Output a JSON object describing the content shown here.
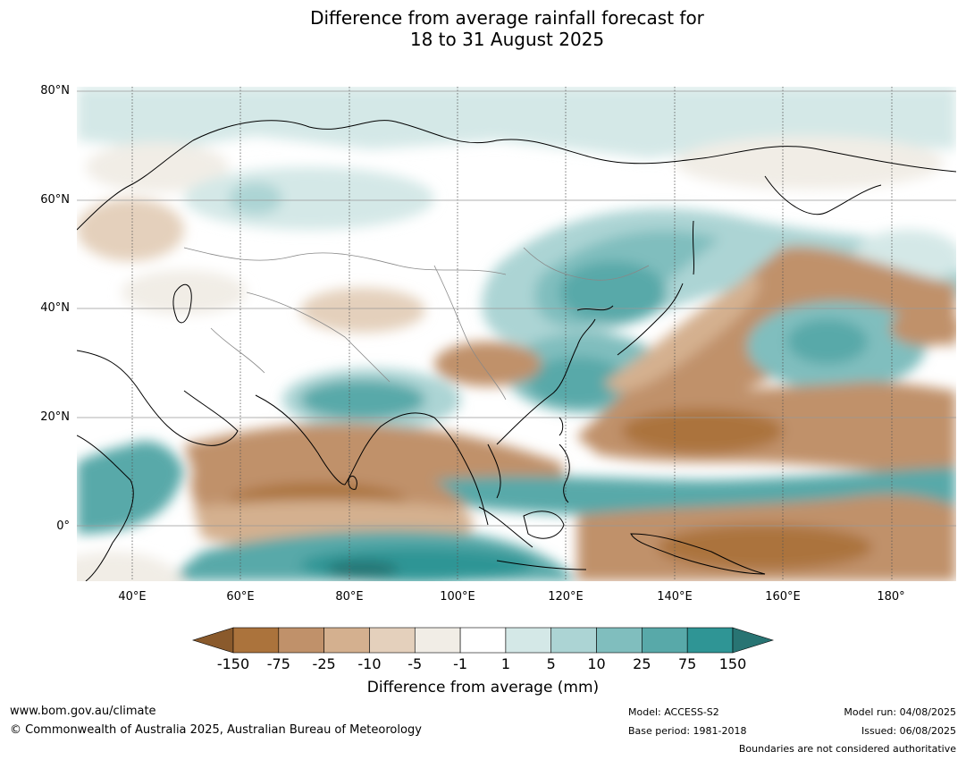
{
  "title": {
    "line1": "Difference from average rainfall forecast for",
    "line2": "18 to 31 August 2025"
  },
  "lat_ticks": [
    "80°N",
    "60°N",
    "40°N",
    "20°N",
    "0°"
  ],
  "lon_ticks": [
    "40°E",
    "60°E",
    "80°E",
    "100°E",
    "120°E",
    "140°E",
    "160°E",
    "180°"
  ],
  "colorbar": {
    "title": "Difference from average (mm)",
    "labels": [
      "-150",
      "-75",
      "-25",
      "-10",
      "-5",
      "-1",
      "1",
      "5",
      "10",
      "25",
      "75",
      "150"
    ],
    "colors": [
      "#8a5a2c",
      "#ab733c",
      "#c0916a",
      "#d4b08f",
      "#e4d0bc",
      "#f1ede6",
      "#ffffff",
      "#d4e8e7",
      "#acd4d4",
      "#80bebe",
      "#58a9a9",
      "#2f9595",
      "#287473"
    ]
  },
  "footer": {
    "url": "www.bom.gov.au/climate",
    "copyright": "© Commonwealth of Australia 2025, Australian Bureau of Meteorology",
    "model": "Model: ACCESS-S2",
    "base_period": "Base period: 1981-2018",
    "model_run": "Model run: 04/08/2025",
    "issued": "Issued: 06/08/2025",
    "disclaimer": "Boundaries are not considered authoritative"
  }
}
